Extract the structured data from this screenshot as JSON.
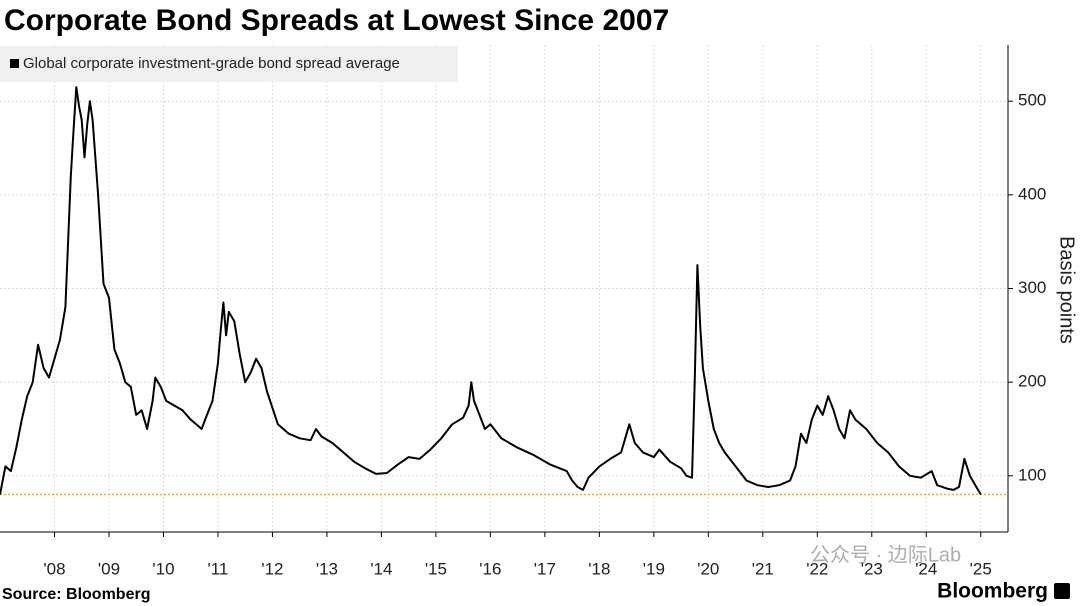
{
  "chart_data": {
    "type": "line",
    "title": "Corporate Bond Spreads at Lowest Since 2007",
    "y_axis_label": "Basis points",
    "y_axis_side": "right",
    "grid": true,
    "legend": "upper left",
    "xlim": [
      2007.5,
      2026
    ],
    "xticks": [
      {
        "value": 2008.5,
        "label": "'08"
      },
      {
        "value": 2009.5,
        "label": "'09"
      },
      {
        "value": 2010.5,
        "label": "'10"
      },
      {
        "value": 2011.5,
        "label": "'11"
      },
      {
        "value": 2012.5,
        "label": "'12"
      },
      {
        "value": 2013.5,
        "label": "'13"
      },
      {
        "value": 2014.5,
        "label": "'14"
      },
      {
        "value": 2015.5,
        "label": "'15"
      },
      {
        "value": 2016.5,
        "label": "'16"
      },
      {
        "value": 2017.5,
        "label": "'17"
      },
      {
        "value": 2018.5,
        "label": "'18"
      },
      {
        "value": 2019.5,
        "label": "'19"
      },
      {
        "value": 2020.5,
        "label": "'20"
      },
      {
        "value": 2021.5,
        "label": "'21"
      },
      {
        "value": 2022.5,
        "label": "'22"
      },
      {
        "value": 2023.5,
        "label": "'23"
      },
      {
        "value": 2024.5,
        "label": "'24"
      },
      {
        "value": 2025.5,
        "label": "'25"
      }
    ],
    "ylim": [
      40,
      560
    ],
    "yticks": [
      100,
      200,
      300,
      400,
      500
    ],
    "reference_line": {
      "value": 80,
      "color": "#f0b040"
    },
    "x": [
      2007.5,
      2007.6,
      2007.7,
      2007.8,
      2007.9,
      2008.0,
      2008.1,
      2008.2,
      2008.3,
      2008.4,
      2008.5,
      2008.6,
      2008.7,
      2008.75,
      2008.8,
      2008.85,
      2008.9,
      2008.95,
      2009.0,
      2009.05,
      2009.1,
      2009.15,
      2009.2,
      2009.3,
      2009.4,
      2009.5,
      2009.6,
      2009.7,
      2009.8,
      2009.9,
      2010.0,
      2010.1,
      2010.2,
      2010.3,
      2010.35,
      2010.45,
      2010.55,
      2010.7,
      2010.85,
      2011.0,
      2011.1,
      2011.2,
      2011.3,
      2011.4,
      2011.5,
      2011.55,
      2011.6,
      2011.65,
      2011.7,
      2011.8,
      2011.9,
      2012.0,
      2012.1,
      2012.2,
      2012.3,
      2012.4,
      2012.6,
      2012.8,
      2013.0,
      2013.2,
      2013.3,
      2013.4,
      2013.6,
      2013.8,
      2014.0,
      2014.2,
      2014.4,
      2014.6,
      2014.8,
      2015.0,
      2015.2,
      2015.4,
      2015.6,
      2015.8,
      2016.0,
      2016.1,
      2016.15,
      2016.2,
      2016.3,
      2016.4,
      2016.5,
      2016.7,
      2017.0,
      2017.3,
      2017.6,
      2017.9,
      2018.0,
      2018.1,
      2018.2,
      2018.3,
      2018.5,
      2018.7,
      2018.9,
      2019.0,
      2019.05,
      2019.15,
      2019.3,
      2019.5,
      2019.6,
      2019.8,
      2020.0,
      2020.1,
      2020.2,
      2020.25,
      2020.3,
      2020.35,
      2020.4,
      2020.5,
      2020.6,
      2020.7,
      2020.8,
      2021.0,
      2021.2,
      2021.4,
      2021.6,
      2021.8,
      2022.0,
      2022.1,
      2022.2,
      2022.3,
      2022.4,
      2022.5,
      2022.6,
      2022.7,
      2022.8,
      2022.9,
      2023.0,
      2023.1,
      2023.2,
      2023.4,
      2023.6,
      2023.8,
      2024.0,
      2024.2,
      2024.4,
      2024.6,
      2024.7,
      2024.9,
      2025.0,
      2025.1,
      2025.2,
      2025.3,
      2025.4,
      2025.5
    ],
    "series": [
      {
        "name": "Global corporate investment-grade bond spread average",
        "color": "#000000",
        "values": [
          80,
          110,
          105,
          130,
          160,
          185,
          200,
          240,
          215,
          205,
          225,
          245,
          280,
          350,
          420,
          470,
          515,
          495,
          480,
          440,
          475,
          500,
          480,
          400,
          305,
          290,
          235,
          220,
          200,
          195,
          165,
          170,
          150,
          180,
          205,
          195,
          180,
          175,
          170,
          160,
          155,
          150,
          165,
          180,
          220,
          255,
          285,
          250,
          275,
          265,
          230,
          200,
          210,
          225,
          215,
          190,
          155,
          145,
          140,
          138,
          150,
          142,
          135,
          125,
          115,
          108,
          102,
          103,
          112,
          120,
          118,
          128,
          140,
          155,
          162,
          175,
          200,
          180,
          165,
          150,
          155,
          140,
          130,
          122,
          112,
          105,
          95,
          88,
          85,
          98,
          110,
          118,
          125,
          145,
          155,
          135,
          125,
          120,
          128,
          115,
          108,
          100,
          98,
          200,
          325,
          260,
          215,
          180,
          150,
          135,
          125,
          110,
          95,
          90,
          88,
          90,
          95,
          110,
          145,
          135,
          160,
          175,
          165,
          185,
          170,
          150,
          140,
          170,
          160,
          150,
          135,
          125,
          110,
          100,
          98,
          105,
          90,
          86,
          85,
          88,
          118,
          100,
          90,
          80
        ]
      }
    ]
  },
  "source": "Source: Bloomberg",
  "logo": "Bloomberg",
  "watermark": "公众号 · 边际Lab"
}
